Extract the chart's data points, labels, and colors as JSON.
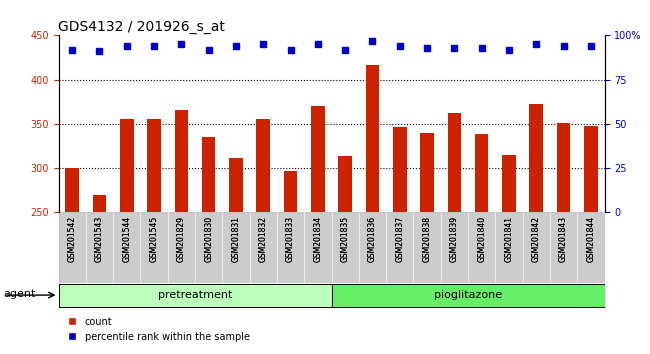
{
  "title": "GDS4132 / 201926_s_at",
  "categories": [
    "GSM201542",
    "GSM201543",
    "GSM201544",
    "GSM201545",
    "GSM201829",
    "GSM201830",
    "GSM201831",
    "GSM201832",
    "GSM201833",
    "GSM201834",
    "GSM201835",
    "GSM201836",
    "GSM201837",
    "GSM201838",
    "GSM201839",
    "GSM201840",
    "GSM201841",
    "GSM201842",
    "GSM201843",
    "GSM201844"
  ],
  "bar_values": [
    300,
    270,
    356,
    355,
    366,
    335,
    311,
    355,
    297,
    370,
    314,
    416,
    346,
    340,
    362,
    339,
    315,
    372,
    351,
    348
  ],
  "dot_values_pct": [
    92,
    91,
    94,
    94,
    95,
    92,
    94,
    95,
    92,
    95,
    92,
    97,
    94,
    93,
    93,
    93,
    92,
    95,
    94,
    94
  ],
  "bar_color": "#cc2200",
  "dot_color": "#0000cc",
  "bar_bottom": 250,
  "ylim_left": [
    250,
    450
  ],
  "ylim_right": [
    0,
    100
  ],
  "yticks_left": [
    250,
    300,
    350,
    400,
    450
  ],
  "yticks_right": [
    0,
    25,
    50,
    75,
    100
  ],
  "grid_values": [
    300,
    350,
    400
  ],
  "pretreatment_count": 10,
  "pioglitazone_count": 10,
  "group1_label": "pretreatment",
  "group2_label": "pioglitazone",
  "group1_color": "#bbffbb",
  "group2_color": "#66ee66",
  "agent_label": "agent",
  "legend_count_label": "count",
  "legend_pct_label": "percentile rank within the sample",
  "bar_color_legend": "#cc2200",
  "dot_color_legend": "#0000cc",
  "bar_width": 0.5,
  "xtick_bg_color": "#cccccc",
  "plot_bg_color": "#ffffff",
  "title_fontsize": 10,
  "tick_fontsize": 7,
  "label_fontsize": 8,
  "dot_marker_size": 4
}
